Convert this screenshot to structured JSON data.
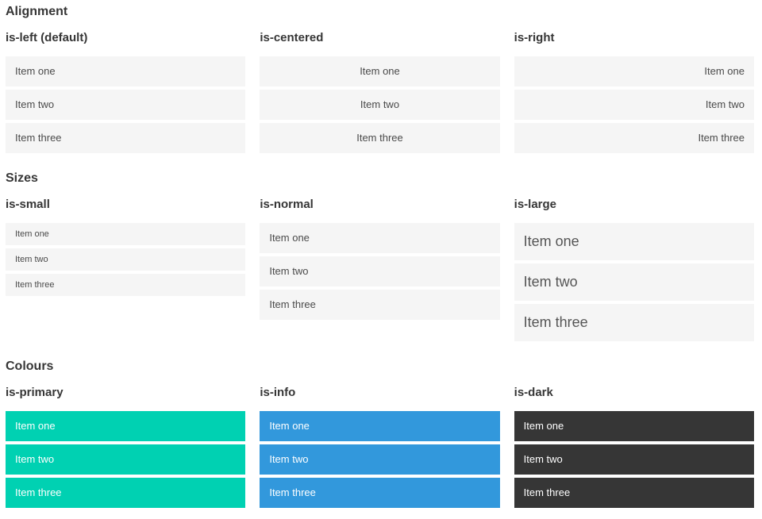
{
  "colors": {
    "primary": "#00d1b2",
    "info": "#3298dc",
    "dark": "#363636",
    "item_bg": "#f5f5f5",
    "item_text": "#4a4a4a"
  },
  "sections": [
    {
      "title": "Alignment",
      "groups": [
        {
          "label": "is-left (default)",
          "variant": "left",
          "items": [
            "Item one",
            "Item two",
            "Item three"
          ]
        },
        {
          "label": "is-centered",
          "variant": "centered",
          "items": [
            "Item one",
            "Item two",
            "Item three"
          ]
        },
        {
          "label": "is-right",
          "variant": "right",
          "items": [
            "Item one",
            "Item two",
            "Item three"
          ]
        }
      ]
    },
    {
      "title": "Sizes",
      "groups": [
        {
          "label": "is-small",
          "variant": "small",
          "items": [
            "Item one",
            "Item two",
            "Item three"
          ]
        },
        {
          "label": "is-normal",
          "variant": "normal",
          "items": [
            "Item one",
            "Item two",
            "Item three"
          ]
        },
        {
          "label": "is-large",
          "variant": "large",
          "items": [
            "Item one",
            "Item two",
            "Item three"
          ]
        }
      ]
    },
    {
      "title": "Colours",
      "groups": [
        {
          "label": "is-primary",
          "variant": "primary",
          "items": [
            "Item one",
            "Item two",
            "Item three"
          ]
        },
        {
          "label": "is-info",
          "variant": "info",
          "items": [
            "Item one",
            "Item two",
            "Item three"
          ]
        },
        {
          "label": "is-dark",
          "variant": "dark",
          "items": [
            "Item one",
            "Item two",
            "Item three"
          ]
        }
      ]
    }
  ]
}
